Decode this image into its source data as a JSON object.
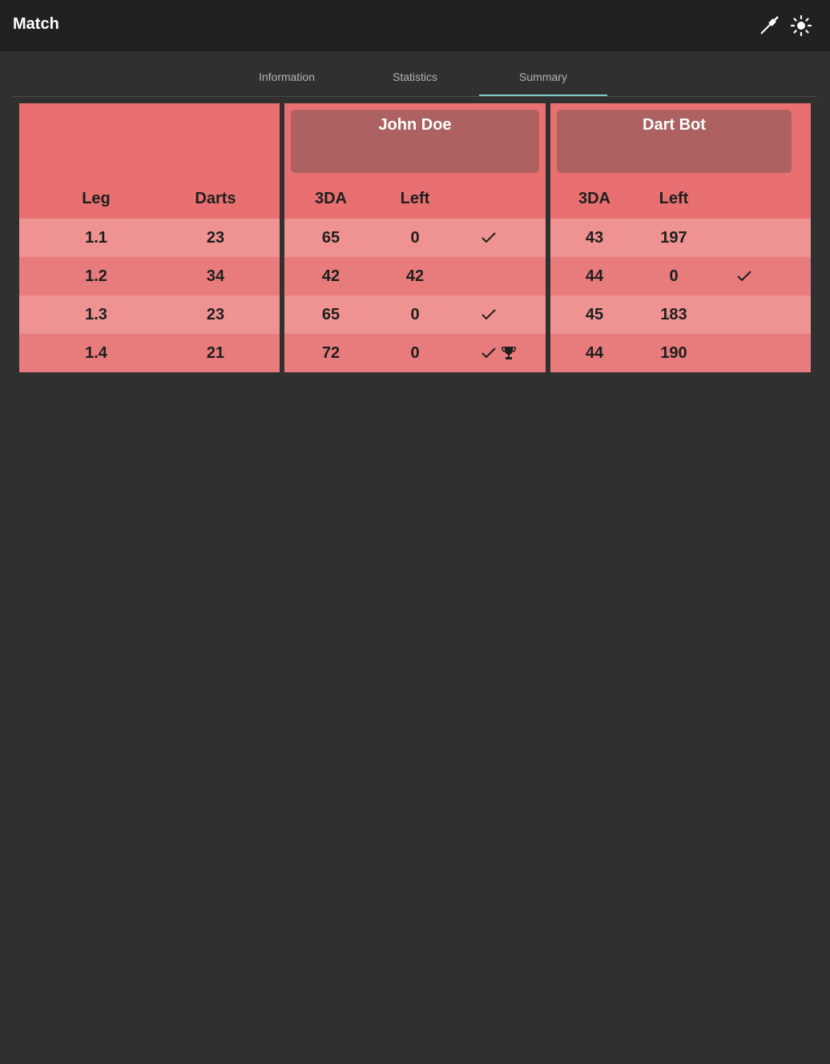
{
  "appbar": {
    "title": "Match",
    "icons": [
      "dart-icon",
      "brightness-icon"
    ]
  },
  "tabs": [
    {
      "label": "Information",
      "active": false
    },
    {
      "label": "Statistics",
      "active": false
    },
    {
      "label": "Summary",
      "active": true
    }
  ],
  "colors": {
    "panel": "#e87070",
    "row_light": "#ee9292",
    "row_dark": "#e87c7c",
    "name_box": "#ad6161",
    "tab_indicator": "#80cbc4"
  },
  "summary": {
    "legs_header": {
      "leg": "Leg",
      "darts": "Darts"
    },
    "players": [
      {
        "name": "John Doe",
        "col_3da": "3DA",
        "col_left": "Left"
      },
      {
        "name": "Dart Bot",
        "col_3da": "3DA",
        "col_left": "Left"
      }
    ],
    "rows": [
      {
        "leg": "1.1",
        "darts": "23",
        "p1_3da": "65",
        "p1_left": "0",
        "p1_check": true,
        "p1_trophy": false,
        "p2_3da": "43",
        "p2_left": "197",
        "p2_check": false
      },
      {
        "leg": "1.2",
        "darts": "34",
        "p1_3da": "42",
        "p1_left": "42",
        "p1_check": false,
        "p1_trophy": false,
        "p2_3da": "44",
        "p2_left": "0",
        "p2_check": true
      },
      {
        "leg": "1.3",
        "darts": "23",
        "p1_3da": "65",
        "p1_left": "0",
        "p1_check": true,
        "p1_trophy": false,
        "p2_3da": "45",
        "p2_left": "183",
        "p2_check": false
      },
      {
        "leg": "1.4",
        "darts": "21",
        "p1_3da": "72",
        "p1_left": "0",
        "p1_check": true,
        "p1_trophy": true,
        "p2_3da": "44",
        "p2_left": "190",
        "p2_check": false
      }
    ]
  }
}
